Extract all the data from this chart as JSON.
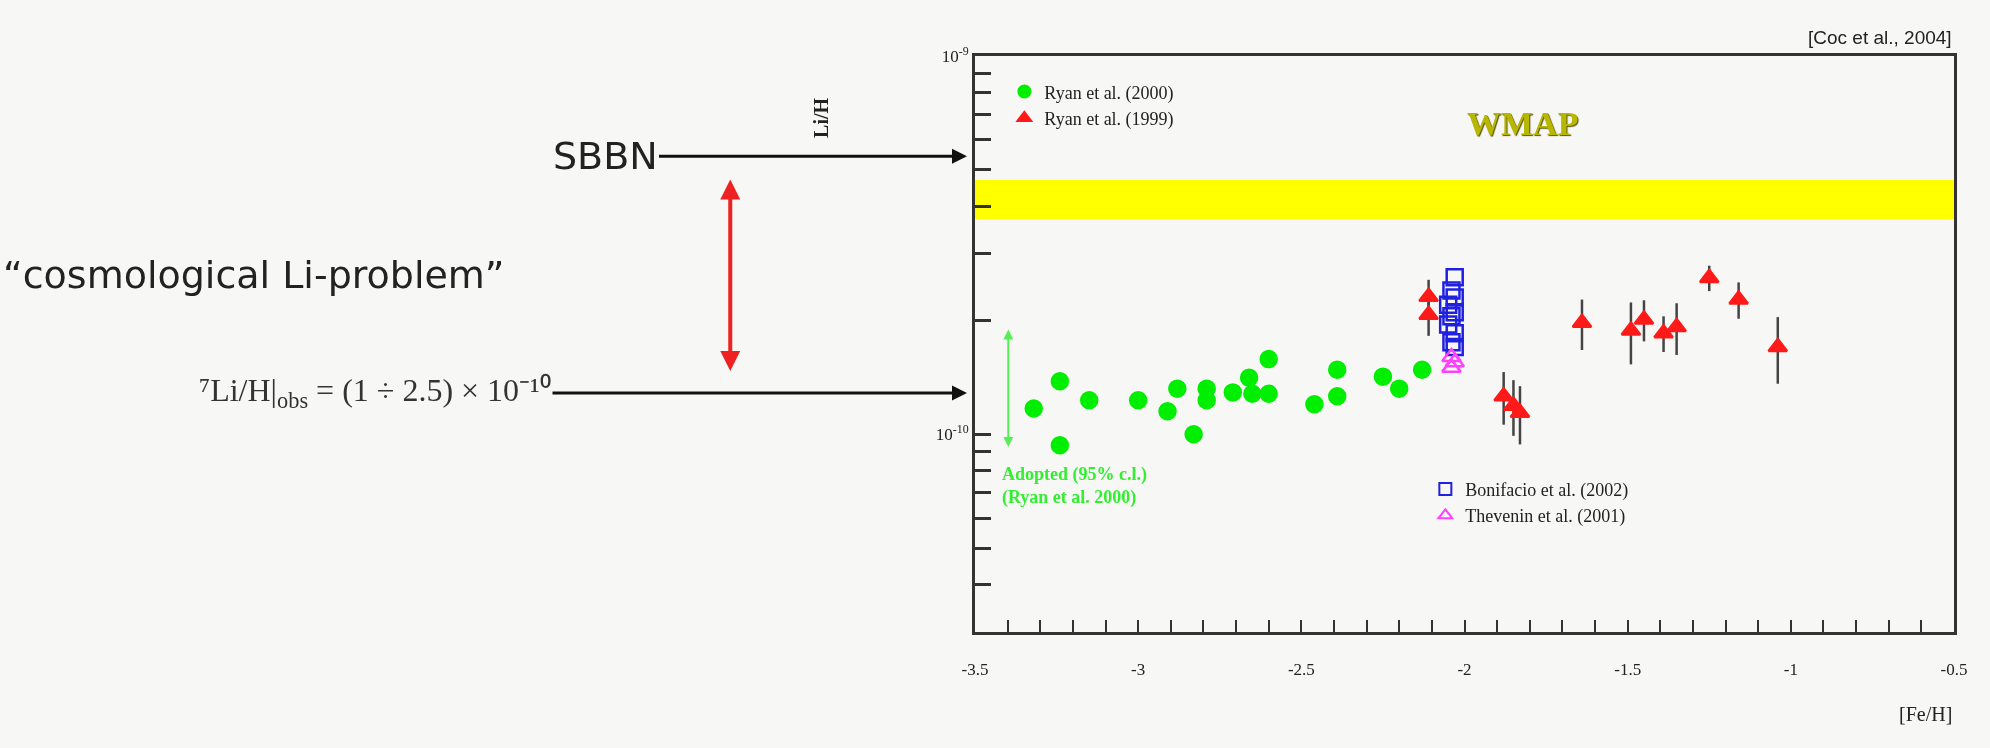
{
  "chart_data": {
    "type": "scatter",
    "xlabel": "[Fe/H]",
    "log": "y",
    "grid": false,
    "legend": "top left",
    "xlim": [
      -3.5,
      -0.5
    ],
    "ylim": [
      3e-11,
      1e-09
    ],
    "xticks": [
      -3.5,
      {
        "value": -3.4,
        "label": null
      },
      {
        "value": -3.3,
        "label": null
      },
      {
        "value": -3.2,
        "label": null
      },
      {
        "value": -3.1,
        "label": null
      },
      -3,
      {
        "value": -2.9,
        "label": null
      },
      {
        "value": -2.8,
        "label": null
      },
      {
        "value": -2.7,
        "label": null
      },
      {
        "value": -2.6,
        "label": null
      },
      -2.5,
      {
        "value": -2.4,
        "label": null
      },
      {
        "value": -2.3,
        "label": null
      },
      {
        "value": -2.2,
        "label": null
      },
      {
        "value": -2.1,
        "label": null
      },
      -2,
      {
        "value": -1.9,
        "label": null
      },
      {
        "value": -1.8,
        "label": null
      },
      {
        "value": -1.7,
        "label": null
      },
      {
        "value": -1.6,
        "label": null
      },
      -1.5,
      {
        "value": -1.4,
        "label": null
      },
      {
        "value": -1.3,
        "label": null
      },
      {
        "value": -1.2,
        "label": null
      },
      {
        "value": -1.1,
        "label": null
      },
      -1,
      {
        "value": -0.9,
        "label": null
      },
      {
        "value": -0.8,
        "label": null
      },
      {
        "value": -0.7,
        "label": null
      },
      {
        "value": -0.6,
        "label": null
      },
      -0.5
    ],
    "yticks": [
      {
        "value": 4e-11,
        "label": null
      },
      {
        "value": 5e-11,
        "label": null
      },
      {
        "value": 6e-11,
        "label": null
      },
      {
        "value": 7e-11,
        "label": null
      },
      {
        "value": 8e-11,
        "label": null
      },
      {
        "value": 9e-11,
        "label": null
      },
      {
        "value": 1e-10,
        "label": "10$^{-10}$"
      },
      {
        "value": 2e-10,
        "label": null
      },
      {
        "value": 3e-10,
        "label": null
      },
      {
        "value": 4e-10,
        "label": null
      },
      {
        "value": 5e-10,
        "label": null
      },
      {
        "value": 6e-10,
        "label": null
      },
      {
        "value": 7e-10,
        "label": null
      },
      {
        "value": 8e-10,
        "label": null
      },
      {
        "value": 9e-10,
        "label": null
      },
      {
        "value": 1e-09,
        "label": "10$^{-9}$"
      }
    ],
    "series": [
      {
        "name": "Ryan et al. (2000)",
        "color": "#00ee00",
        "marker": "circle",
        "x": [
          -3.32,
          -3.24,
          -3.24,
          -3.15,
          -3.0,
          -2.91,
          -2.88,
          -2.83,
          -2.79,
          -2.79,
          -2.71,
          -2.66,
          -2.65,
          -2.6,
          -2.6,
          -2.46,
          -2.39,
          -2.39,
          -2.25,
          -2.2,
          -2.13
        ],
        "values": [
          1.17e-10,
          1.38e-10,
          9.35e-11,
          1.23e-10,
          1.23e-10,
          1.15e-10,
          1.32e-10,
          1e-10,
          1.32e-10,
          1.23e-10,
          1.29e-10,
          1.41e-10,
          1.28e-10,
          1.58e-10,
          1.28e-10,
          1.2e-10,
          1.48e-10,
          1.26e-10,
          1.42e-10,
          1.32e-10,
          1.48e-10
        ]
      },
      {
        "name": "Ryan et al. (1999)",
        "color": "#ff1a1a",
        "marker": "triangle",
        "x": [
          -2.11,
          -2.11,
          -1.88,
          -1.85,
          -1.83,
          -1.64,
          -1.49,
          -1.45,
          -1.39,
          -1.35,
          -1.25,
          -1.16,
          -1.04
        ],
        "values": [
          2.31e-10,
          2.07e-10,
          1.26e-10,
          1.19e-10,
          1.14e-10,
          1.97e-10,
          1.88e-10,
          2.01e-10,
          1.85e-10,
          1.92e-10,
          2.59e-10,
          2.27e-10,
          1.7e-10
        ],
        "errors": [
          2.5e-11,
          2.5e-11,
          2e-11,
          2e-11,
          2e-11,
          3e-11,
          3.5e-11,
          2.5e-11,
          2e-11,
          3e-11,
          2e-11,
          2.5e-11,
          3.4e-11
        ]
      },
      {
        "name": "Bonifacio et al. (2002)",
        "color": "#2020e0",
        "marker": "square-open",
        "x": [
          -2.03,
          -2.04,
          -2.03,
          -2.05,
          -2.03,
          -2.04,
          -2.05,
          -2.03,
          -2.04,
          -2.03
        ],
        "values": [
          2.6e-10,
          2.4e-10,
          2.3e-10,
          2.2e-10,
          2.1e-10,
          2.05e-10,
          1.95e-10,
          1.85e-10,
          1.75e-10,
          1.7e-10
        ]
      },
      {
        "name": "Thevenin et al. (2001)",
        "color": "#ff40ff",
        "marker": "triangle-open",
        "x": [
          -2.04,
          -2.03,
          -2.04
        ],
        "values": [
          1.6e-10,
          1.55e-10,
          1.5e-10
        ]
      }
    ],
    "bands": [
      {
        "axis": "y",
        "from": 3.7e-10,
        "to": 4.7e-10,
        "label": "WMAP",
        "color": "#ffff00"
      }
    ],
    "annotations": [
      "[Coc et al., 2004]",
      "SBBN",
      "“cosmological Li-problem”",
      "⁷Li/H|$_{obs}$ = (1 ÷ 2.5) × 10⁻¹⁰",
      "Adopted (95% c.l.)\n(Ryan et al. 2000)",
      "Li/H"
    ]
  }
}
